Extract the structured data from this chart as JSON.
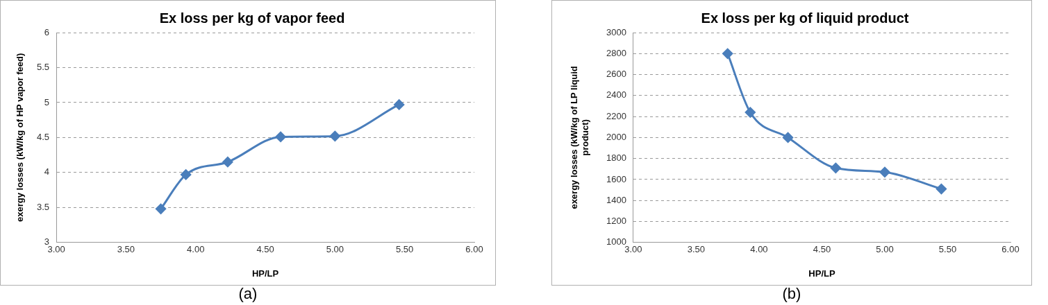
{
  "chart_data": [
    {
      "type": "line",
      "title": "Ex loss per kg of vapor feed",
      "xlabel": "HP/LP",
      "ylabel": "exergy losses (kW/kg of HP vapor feed)",
      "annotations": [
        "(a)"
      ],
      "x": [
        3.75,
        3.93,
        4.23,
        4.61,
        5.0,
        5.46
      ],
      "series": [
        {
          "color": "#4a7ebb",
          "values": [
            3.48,
            3.97,
            4.15,
            4.51,
            4.52,
            4.97
          ]
        }
      ],
      "xlim": [
        3,
        6
      ],
      "xticks": [
        {
          "value": 3,
          "label": "3.00"
        },
        {
          "value": 3.5,
          "label": "3.50"
        },
        {
          "value": 4,
          "label": "4.00"
        },
        {
          "value": 4.5,
          "label": "4.50"
        },
        {
          "value": 5,
          "label": "5.00"
        },
        {
          "value": 5.5,
          "label": "5.50"
        },
        {
          "value": 6,
          "label": "6.00"
        }
      ],
      "ylim": [
        3,
        6
      ],
      "yticks": [
        3,
        3.5,
        4,
        4.5,
        5,
        5.5,
        6
      ],
      "grid": "y",
      "legend": false,
      "marker": "diamond",
      "line_style": "solid"
    },
    {
      "type": "line",
      "title": "Ex loss per kg of liquid product",
      "xlabel": "HP/LP",
      "ylabel": "exergy losses (kW/kg of LP liquid product)",
      "annotations": [
        "(b)"
      ],
      "x": [
        3.75,
        3.93,
        4.23,
        4.61,
        5.0,
        5.45
      ],
      "series": [
        {
          "color": "#4a7ebb",
          "values": [
            2800,
            2240,
            2000,
            1710,
            1670,
            1510
          ]
        }
      ],
      "xlim": [
        3,
        6
      ],
      "xticks": [
        {
          "value": 3,
          "label": "3.00"
        },
        {
          "value": 3.5,
          "label": "3.50"
        },
        {
          "value": 4,
          "label": "4.00"
        },
        {
          "value": 4.5,
          "label": "4.50"
        },
        {
          "value": 5,
          "label": "5.00"
        },
        {
          "value": 5.5,
          "label": "5.50"
        },
        {
          "value": 6,
          "label": "6.00"
        }
      ],
      "ylim": [
        1000,
        3000
      ],
      "yticks": [
        1000,
        1200,
        1400,
        1600,
        1800,
        2000,
        2200,
        2400,
        2600,
        2800,
        3000
      ],
      "grid": "y",
      "legend": false,
      "marker": "diamond",
      "line_style": "solid"
    }
  ]
}
